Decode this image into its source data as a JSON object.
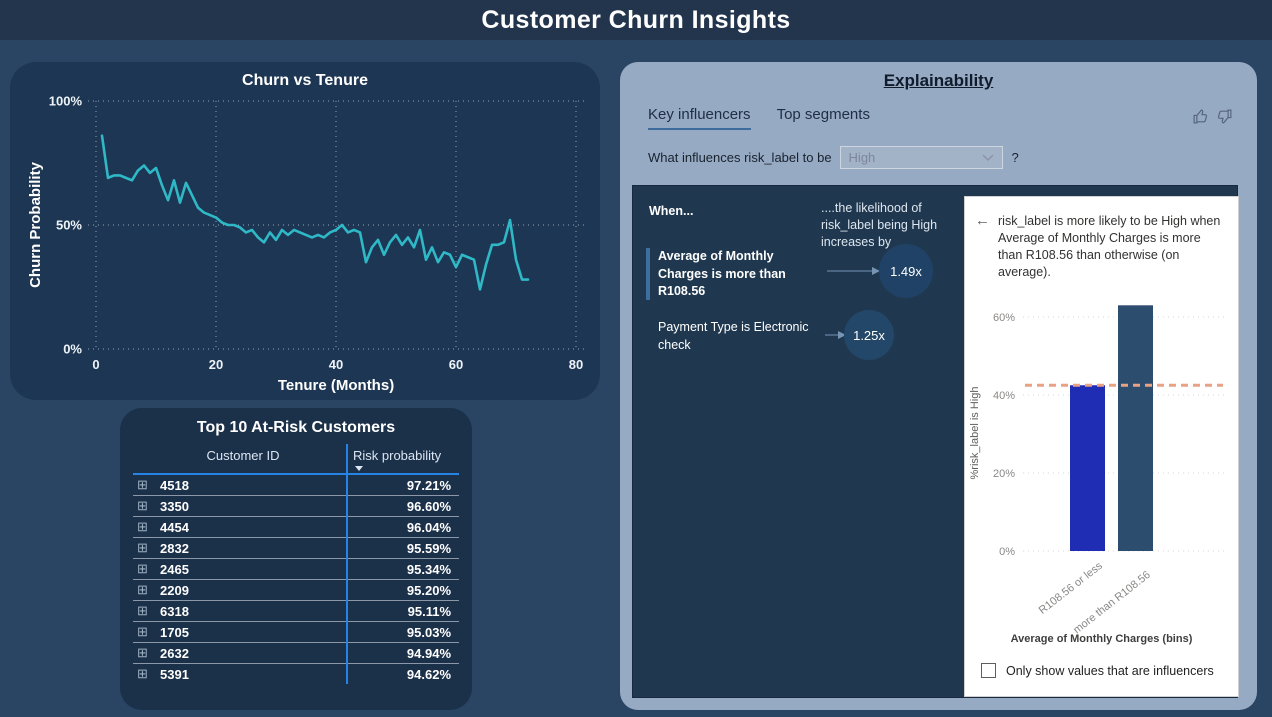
{
  "header": {
    "title": "Customer Churn Insights"
  },
  "risk_table": {
    "title": "Top 10 At-Risk Customers",
    "columns": [
      "Customer ID",
      "Risk probability"
    ],
    "sort": "Risk probability descending",
    "rows": [
      {
        "id": "4518",
        "risk": "97.21%"
      },
      {
        "id": "3350",
        "risk": "96.60%"
      },
      {
        "id": "4454",
        "risk": "96.04%"
      },
      {
        "id": "2832",
        "risk": "95.59%"
      },
      {
        "id": "2465",
        "risk": "95.34%"
      },
      {
        "id": "2209",
        "risk": "95.20%"
      },
      {
        "id": "6318",
        "risk": "95.11%"
      },
      {
        "id": "1705",
        "risk": "95.03%"
      },
      {
        "id": "2632",
        "risk": "94.94%"
      },
      {
        "id": "5391",
        "risk": "94.62%"
      }
    ]
  },
  "explainability": {
    "title": "Explainability",
    "tabs": [
      {
        "label": "Key influencers",
        "active": true
      },
      {
        "label": "Top segments",
        "active": false
      }
    ],
    "question": {
      "prefix": "What influences risk_label to be",
      "selected": "High",
      "suffix": "?"
    },
    "influencers_panel": {
      "when_header": "When...",
      "likelihood_header": "....the likelihood of risk_label being High increases by",
      "influencers": [
        {
          "label": "Average of Monthly Charges is more than R108.56",
          "multiplier": "1.49x",
          "selected": true
        },
        {
          "label": "Payment Type is Electronic check",
          "multiplier": "1.25x",
          "selected": false
        }
      ]
    },
    "detail_card": {
      "explanation": "risk_label is more likely to be High when Average of Monthly Charges is more than R108.56 than otherwise (on average).",
      "checkbox_label": "Only show values that are influencers",
      "checked": false
    }
  },
  "chart_data": [
    {
      "type": "line",
      "title": "Churn vs Tenure",
      "xlabel": "Tenure (Months)",
      "ylabel": "Churn Probability",
      "xlim": [
        0,
        80
      ],
      "ylim": [
        0,
        100
      ],
      "xticks": [
        0,
        20,
        40,
        60,
        80
      ],
      "yticks": [
        0,
        50,
        100
      ],
      "grid": "dotted",
      "line_color": "#2fb9c7",
      "x_start": 1,
      "x_step": 1,
      "values": [
        86,
        69,
        70,
        70,
        69,
        68,
        72,
        74,
        71,
        73,
        66,
        60,
        68,
        59,
        67,
        62,
        57,
        55,
        54,
        53,
        51,
        50,
        50,
        49,
        47,
        48,
        45,
        43,
        47,
        44,
        48,
        46,
        48,
        47,
        46,
        45,
        46,
        45,
        47,
        48,
        50,
        47,
        48,
        47,
        35,
        41,
        44,
        38,
        43,
        46,
        42,
        45,
        41,
        48,
        36,
        41,
        35,
        39,
        38,
        33,
        38,
        37,
        36,
        24,
        34,
        42,
        42,
        43,
        52,
        36,
        28,
        28
      ]
    },
    {
      "type": "bar",
      "categories": [
        "R108.56 or less",
        "more than R108.56"
      ],
      "values": [
        42.5,
        63
      ],
      "average_line": 42.5,
      "xlabel": "Average of Monthly Charges (bins)",
      "ylabel": "%risk_label is High",
      "ylim": [
        0,
        70
      ],
      "yticks": [
        0,
        20,
        40,
        60
      ],
      "grid": "dotted",
      "bar_colors": [
        "#1e2db4",
        "#2d4d6e"
      ],
      "average_line_color": "#e9a284"
    }
  ],
  "icons": {
    "back_arrow": "←",
    "expand": "⊞"
  },
  "colors": {
    "page_bg": "#2a4564",
    "header_bg": "#22354d",
    "dark_panel_bg": "#1d3653",
    "table_panel_bg": "#1b3049",
    "explain_panel_bg": "#97aac3",
    "ki_container_bg": "#20384f",
    "table_divider": "#2584e4",
    "line_color": "#2fb9c7",
    "tab_underline": "#3e6b9e",
    "bubble_fill": "#1f4266"
  }
}
